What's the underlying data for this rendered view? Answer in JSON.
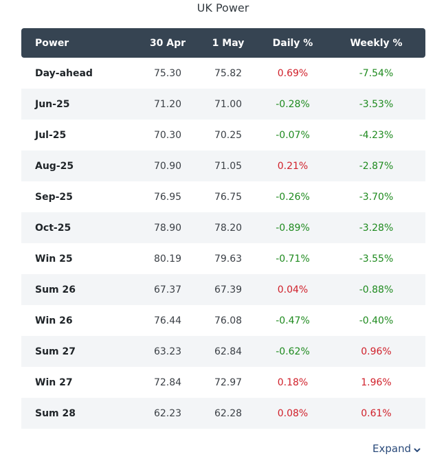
{
  "title": "UK Power",
  "columns": [
    "Power",
    "30 Apr",
    "1 May",
    "Daily %",
    "Weekly %"
  ],
  "rows": [
    {
      "name": "Day-ahead",
      "apr30": "75.30",
      "may1": "75.82",
      "daily": "0.69%",
      "weekly": "-7.54%"
    },
    {
      "name": "Jun-25",
      "apr30": "71.20",
      "may1": "71.00",
      "daily": "-0.28%",
      "weekly": "-3.53%"
    },
    {
      "name": "Jul-25",
      "apr30": "70.30",
      "may1": "70.25",
      "daily": "-0.07%",
      "weekly": "-4.23%"
    },
    {
      "name": "Aug-25",
      "apr30": "70.90",
      "may1": "71.05",
      "daily": "0.21%",
      "weekly": "-2.87%"
    },
    {
      "name": "Sep-25",
      "apr30": "76.95",
      "may1": "76.75",
      "daily": "-0.26%",
      "weekly": "-3.70%"
    },
    {
      "name": "Oct-25",
      "apr30": "78.90",
      "may1": "78.20",
      "daily": "-0.89%",
      "weekly": "-3.28%"
    },
    {
      "name": "Win 25",
      "apr30": "80.19",
      "may1": "79.63",
      "daily": "-0.71%",
      "weekly": "-3.55%"
    },
    {
      "name": "Sum 26",
      "apr30": "67.37",
      "may1": "67.39",
      "daily": "0.04%",
      "weekly": "-0.88%"
    },
    {
      "name": "Win 26",
      "apr30": "76.44",
      "may1": "76.08",
      "daily": "-0.47%",
      "weekly": "-0.40%"
    },
    {
      "name": "Sum 27",
      "apr30": "63.23",
      "may1": "62.84",
      "daily": "-0.62%",
      "weekly": "0.96%"
    },
    {
      "name": "Win 27",
      "apr30": "72.84",
      "may1": "72.97",
      "daily": "0.18%",
      "weekly": "1.96%"
    },
    {
      "name": "Sum 28",
      "apr30": "62.23",
      "may1": "62.28",
      "daily": "0.08%",
      "weekly": "0.61%"
    }
  ],
  "expand_label": "Expand",
  "expand_icon": "chevron-down-icon",
  "colors": {
    "header_bg": "#364452",
    "positive": "#d0202a",
    "negative": "#1e8a1e",
    "stripe": "#f3f5f7",
    "link": "#2a4a7a"
  }
}
